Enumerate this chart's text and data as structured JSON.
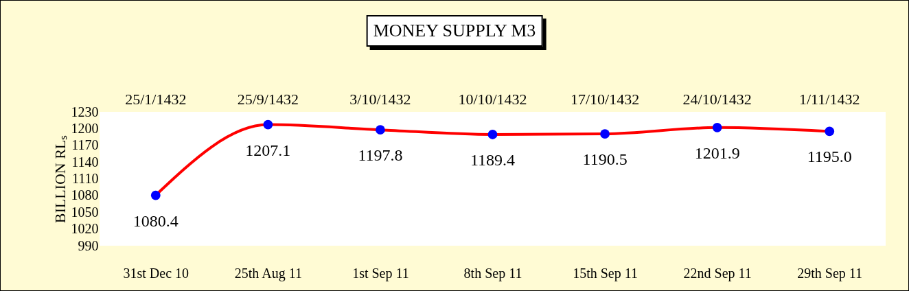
{
  "chart_data": {
    "type": "line",
    "title": "MONEY SUPPLY M3",
    "ylabel": "BILLION RLₛ",
    "categories": [
      "31st Dec 10",
      "25th Aug 11",
      "1st Sep 11",
      "8th Sep 11",
      "15th Sep 11",
      "22nd Sep 11",
      "29th Sep 11"
    ],
    "series": [
      {
        "color": "#ff0000",
        "values": [
          1080.4,
          1207.1,
          1197.8,
          1189.4,
          1190.5,
          1201.9,
          1195.0
        ],
        "value_labels": [
          "1080.4",
          "1207.1",
          "1197.8",
          "1189.4",
          "1190.5",
          "1201.9",
          "1195.0"
        ]
      }
    ],
    "ylim": [
      990,
      1230
    ],
    "yticks": [
      990,
      1020,
      1050,
      1080,
      1110,
      1140,
      1170,
      1200,
      1230
    ],
    "marker": "circle",
    "annotations": [
      "25/1/1432",
      "25/9/1432",
      "3/10/1432",
      "10/10/1432",
      "17/10/1432",
      "24/10/1432",
      "1/11/1432"
    ]
  }
}
